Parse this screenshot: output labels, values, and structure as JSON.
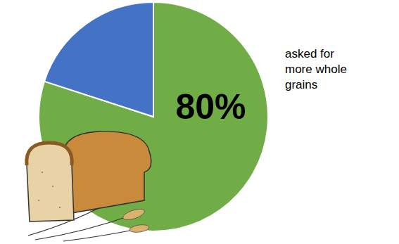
{
  "chart_data": {
    "type": "pie",
    "values": [
      80,
      20
    ],
    "value_labels": [
      "80%",
      null
    ],
    "colors": [
      "#70ad47",
      "#4472c4"
    ],
    "data_labels": true,
    "annotation": "asked for more whole grains"
  }
}
